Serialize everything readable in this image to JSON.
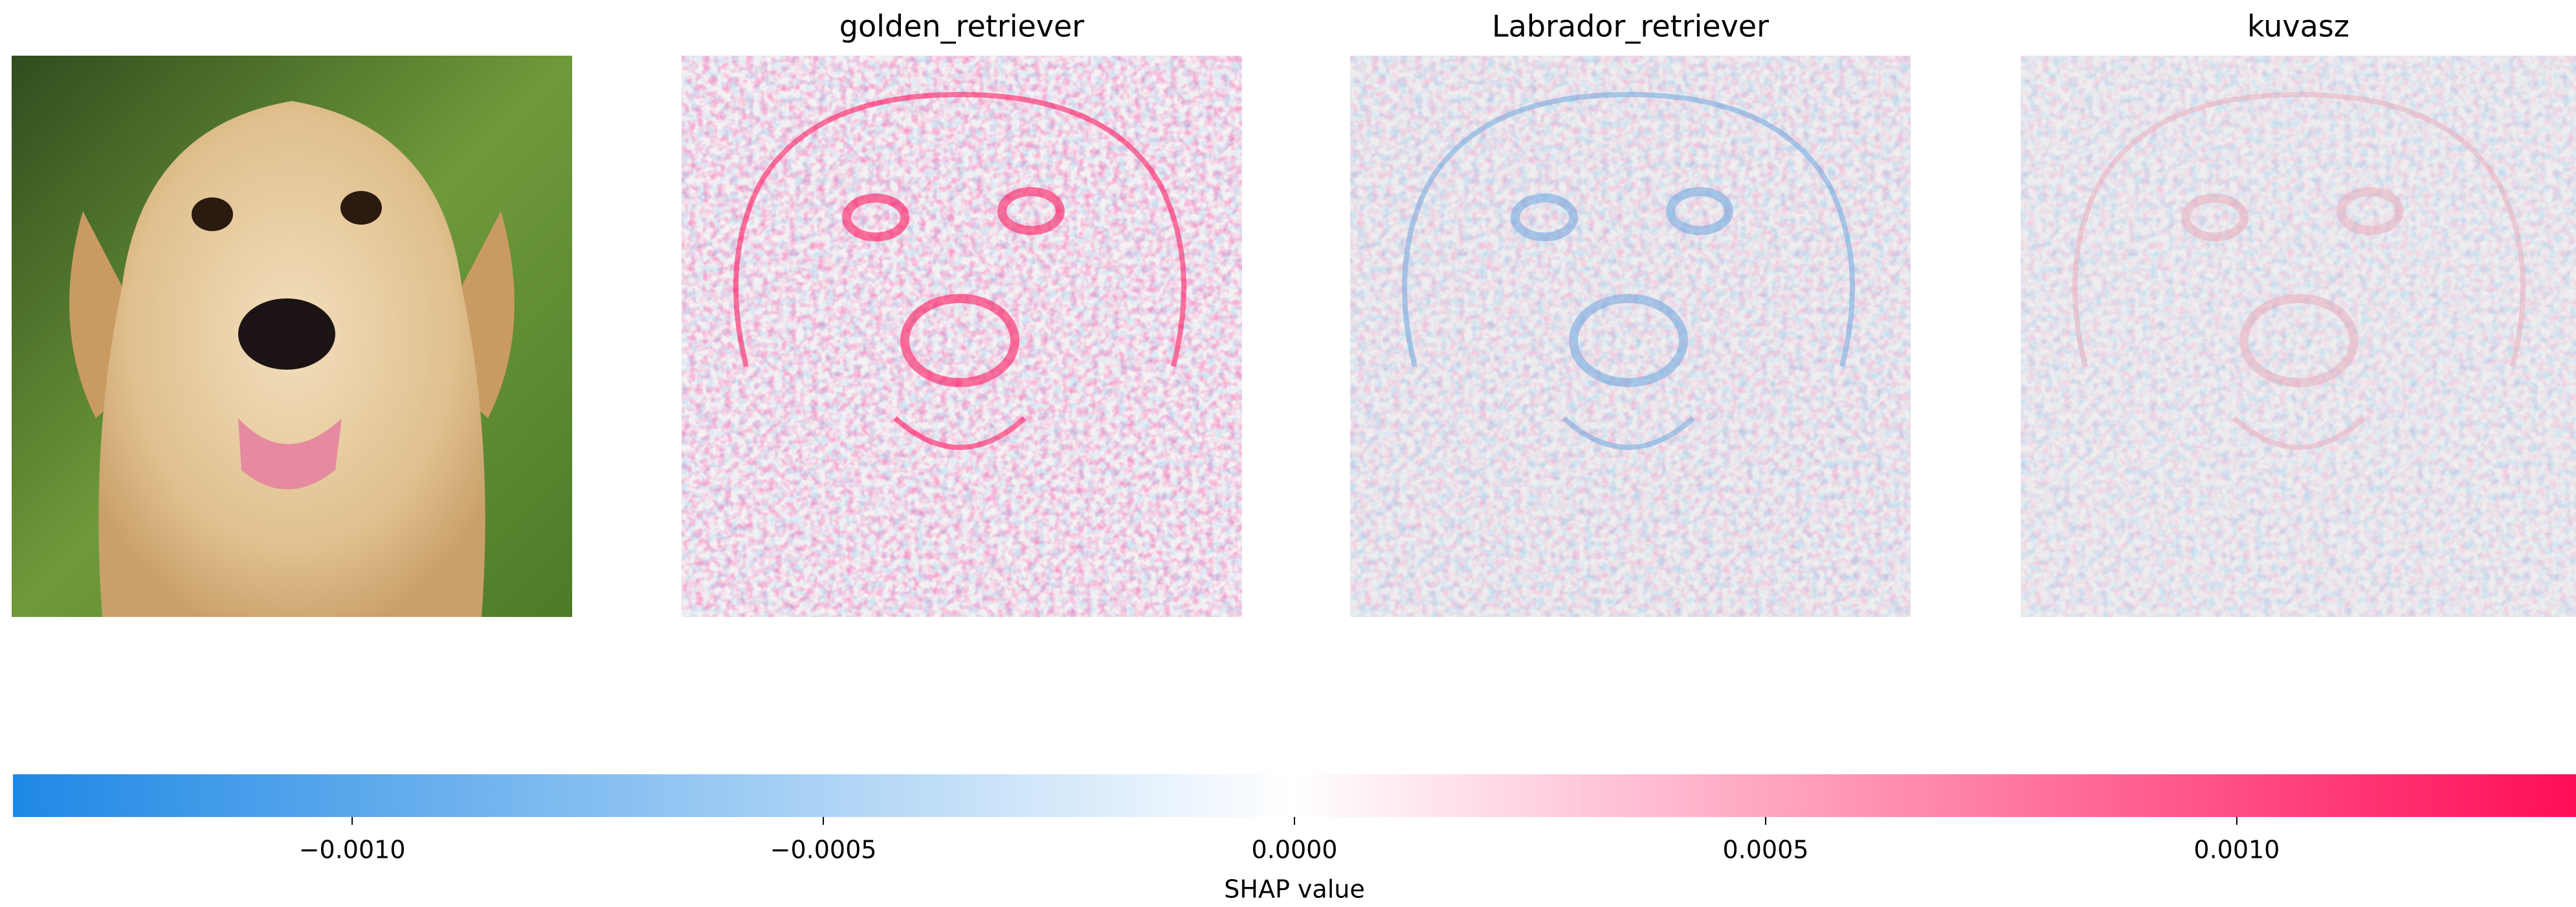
{
  "chart_data": {
    "type": "image",
    "panels": [
      {
        "title": "golden_retriever"
      },
      {
        "title": "Labrador_retriever"
      },
      {
        "title": "kuvasz"
      }
    ],
    "colorbar": {
      "label": "SHAP value",
      "xlim": [
        -0.00136,
        0.00136
      ],
      "xticks": [
        {
          "value": -0.001,
          "label": "−0.0010"
        },
        {
          "value": -0.0005,
          "label": "−0.0005"
        },
        {
          "value": 0,
          "label": "0.0000"
        },
        0.0005,
        {
          "value": 0.001,
          "label": "0.0010"
        }
      ],
      "colors": [
        "#1E88E5",
        "#ffffff",
        "#FF0D57"
      ]
    }
  }
}
